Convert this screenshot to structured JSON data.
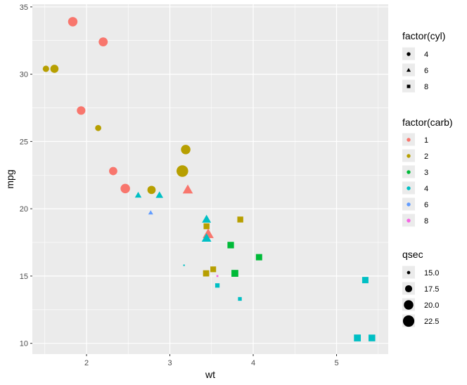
{
  "chart_data": {
    "type": "scatter",
    "xlabel": "wt",
    "ylabel": "mpg",
    "xlim": [
      1.35,
      5.62
    ],
    "ylim": [
      9.2,
      35.2
    ],
    "x_ticks": [
      2,
      3,
      4,
      5
    ],
    "y_ticks": [
      10,
      15,
      20,
      25,
      30,
      35
    ],
    "grid": true,
    "legend_position": "right",
    "legends": {
      "shape": {
        "title": "factor(cyl)",
        "entries": [
          {
            "label": "4",
            "shape": "circle"
          },
          {
            "label": "6",
            "shape": "triangle"
          },
          {
            "label": "8",
            "shape": "square"
          }
        ]
      },
      "colour": {
        "title": "factor(carb)",
        "entries": [
          {
            "label": "1",
            "color": "#F8766D"
          },
          {
            "label": "2",
            "color": "#B79F00"
          },
          {
            "label": "3",
            "color": "#00BA38"
          },
          {
            "label": "4",
            "color": "#00BFC4"
          },
          {
            "label": "6",
            "color": "#619CFF"
          },
          {
            "label": "8",
            "color": "#F564E3"
          }
        ]
      },
      "size": {
        "title": "qsec",
        "entries": [
          {
            "label": "15.0",
            "value": 15.0
          },
          {
            "label": "17.5",
            "value": 17.5
          },
          {
            "label": "20.0",
            "value": 20.0
          },
          {
            "label": "22.5",
            "value": 22.5
          }
        ]
      }
    },
    "points": [
      {
        "wt": 2.62,
        "mpg": 21.0,
        "cyl": 6,
        "carb": 4,
        "qsec": 16.46
      },
      {
        "wt": 2.875,
        "mpg": 21.0,
        "cyl": 6,
        "carb": 4,
        "qsec": 17.02
      },
      {
        "wt": 2.32,
        "mpg": 22.8,
        "cyl": 4,
        "carb": 1,
        "qsec": 18.61
      },
      {
        "wt": 3.215,
        "mpg": 21.4,
        "cyl": 6,
        "carb": 1,
        "qsec": 19.44
      },
      {
        "wt": 3.44,
        "mpg": 18.7,
        "cyl": 8,
        "carb": 2,
        "qsec": 17.02
      },
      {
        "wt": 3.46,
        "mpg": 18.1,
        "cyl": 6,
        "carb": 1,
        "qsec": 20.22
      },
      {
        "wt": 3.57,
        "mpg": 14.3,
        "cyl": 8,
        "carb": 4,
        "qsec": 15.84
      },
      {
        "wt": 3.19,
        "mpg": 24.4,
        "cyl": 4,
        "carb": 2,
        "qsec": 20.0
      },
      {
        "wt": 3.15,
        "mpg": 22.8,
        "cyl": 4,
        "carb": 2,
        "qsec": 22.9
      },
      {
        "wt": 3.44,
        "mpg": 19.2,
        "cyl": 6,
        "carb": 4,
        "qsec": 18.3
      },
      {
        "wt": 3.44,
        "mpg": 17.8,
        "cyl": 6,
        "carb": 4,
        "qsec": 18.9
      },
      {
        "wt": 4.07,
        "mpg": 16.4,
        "cyl": 8,
        "carb": 3,
        "qsec": 17.4
      },
      {
        "wt": 3.73,
        "mpg": 17.3,
        "cyl": 8,
        "carb": 3,
        "qsec": 17.6
      },
      {
        "wt": 3.78,
        "mpg": 15.2,
        "cyl": 8,
        "carb": 3,
        "qsec": 18.0
      },
      {
        "wt": 5.25,
        "mpg": 10.4,
        "cyl": 8,
        "carb": 4,
        "qsec": 17.98
      },
      {
        "wt": 5.424,
        "mpg": 10.4,
        "cyl": 8,
        "carb": 4,
        "qsec": 17.82
      },
      {
        "wt": 5.345,
        "mpg": 14.7,
        "cyl": 8,
        "carb": 4,
        "qsec": 17.42
      },
      {
        "wt": 2.2,
        "mpg": 32.4,
        "cyl": 4,
        "carb": 1,
        "qsec": 19.47
      },
      {
        "wt": 1.615,
        "mpg": 30.4,
        "cyl": 4,
        "carb": 2,
        "qsec": 18.52
      },
      {
        "wt": 1.835,
        "mpg": 33.9,
        "cyl": 4,
        "carb": 1,
        "qsec": 19.9
      },
      {
        "wt": 2.465,
        "mpg": 21.5,
        "cyl": 4,
        "carb": 1,
        "qsec": 20.01
      },
      {
        "wt": 3.52,
        "mpg": 15.5,
        "cyl": 8,
        "carb": 2,
        "qsec": 16.87
      },
      {
        "wt": 3.435,
        "mpg": 15.2,
        "cyl": 8,
        "carb": 2,
        "qsec": 17.3
      },
      {
        "wt": 3.84,
        "mpg": 13.3,
        "cyl": 8,
        "carb": 4,
        "qsec": 15.41
      },
      {
        "wt": 3.845,
        "mpg": 19.2,
        "cyl": 8,
        "carb": 2,
        "qsec": 17.05
      },
      {
        "wt": 1.935,
        "mpg": 27.3,
        "cyl": 4,
        "carb": 1,
        "qsec": 18.9
      },
      {
        "wt": 2.14,
        "mpg": 26.0,
        "cyl": 4,
        "carb": 2,
        "qsec": 16.7
      },
      {
        "wt": 1.513,
        "mpg": 30.4,
        "cyl": 4,
        "carb": 2,
        "qsec": 16.9
      },
      {
        "wt": 3.17,
        "mpg": 15.8,
        "cyl": 8,
        "carb": 4,
        "qsec": 14.5
      },
      {
        "wt": 2.77,
        "mpg": 19.7,
        "cyl": 6,
        "carb": 6,
        "qsec": 15.5
      },
      {
        "wt": 3.57,
        "mpg": 15.0,
        "cyl": 8,
        "carb": 8,
        "qsec": 14.6
      },
      {
        "wt": 2.78,
        "mpg": 21.4,
        "cyl": 4,
        "carb": 2,
        "qsec": 18.6
      }
    ]
  }
}
